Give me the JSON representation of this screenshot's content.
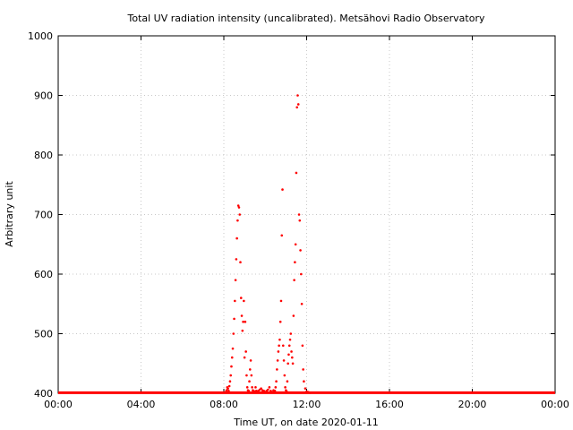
{
  "chart_data": {
    "type": "scatter",
    "title": "Total UV radiation intensity (uncalibrated). Metsähovi Radio Observatory",
    "xlabel": "Time UT, on date 2020-01-11",
    "ylabel": "Arbitrary unit",
    "xlim": [
      "00:00",
      "24:00"
    ],
    "ylim": [
      400,
      1000
    ],
    "x_ticks": [
      "00:00",
      "04:00",
      "08:00",
      "12:00",
      "16:00",
      "20:00",
      "00:00"
    ],
    "x_tick_hours": [
      0,
      4,
      8,
      12,
      16,
      20,
      24
    ],
    "y_ticks": [
      400,
      500,
      600,
      700,
      800,
      900,
      1000
    ],
    "grid": true,
    "marker_color": "#ff0000",
    "baseline": {
      "y": 401,
      "from": "00:00",
      "to": "24:00"
    },
    "series": [
      {
        "x": [
          "08:05",
          "08:08",
          "08:10",
          "08:12",
          "08:14",
          "08:16",
          "08:18",
          "08:20",
          "08:22",
          "08:24",
          "08:26",
          "08:28",
          "08:30",
          "08:32",
          "08:34",
          "08:36",
          "08:38",
          "08:40",
          "08:42",
          "08:44",
          "08:46",
          "08:48",
          "08:50",
          "08:52",
          "08:54",
          "08:56",
          "08:58",
          "09:00",
          "09:02",
          "09:04",
          "09:06",
          "09:08",
          "09:10",
          "09:12",
          "09:14",
          "09:16",
          "09:18",
          "09:20",
          "09:22",
          "09:24",
          "09:26",
          "09:28",
          "09:30",
          "09:32",
          "09:34",
          "09:36",
          "09:38",
          "09:40",
          "09:44",
          "09:48",
          "09:52",
          "09:56",
          "10:00",
          "10:04",
          "10:08",
          "10:12",
          "10:16",
          "10:20",
          "10:24",
          "10:28",
          "10:30",
          "10:32",
          "10:34",
          "10:36",
          "10:38",
          "10:40",
          "10:42",
          "10:44",
          "10:46",
          "10:48",
          "10:50",
          "10:52",
          "10:54",
          "10:56",
          "10:58",
          "11:00",
          "11:02",
          "11:04",
          "11:06",
          "11:08",
          "11:10",
          "11:12",
          "11:14",
          "11:16",
          "11:18",
          "11:20",
          "11:22",
          "11:24",
          "11:26",
          "11:28",
          "11:30",
          "11:32",
          "11:34",
          "11:36",
          "11:38",
          "11:40",
          "11:42",
          "11:44",
          "11:46",
          "11:48",
          "11:50",
          "11:52",
          "11:56",
          "12:00",
          "12:05",
          "12:10"
        ],
        "y": [
          402,
          405,
          410,
          408,
          404,
          412,
          420,
          430,
          445,
          460,
          475,
          500,
          525,
          555,
          590,
          625,
          660,
          690,
          715,
          712,
          700,
          620,
          560,
          530,
          505,
          520,
          555,
          460,
          520,
          470,
          430,
          410,
          405,
          404,
          420,
          440,
          455,
          430,
          410,
          405,
          404,
          402,
          403,
          410,
          404,
          402,
          403,
          404,
          406,
          408,
          405,
          404,
          402,
          404,
          406,
          410,
          404,
          402,
          405,
          404,
          410,
          420,
          440,
          455,
          470,
          480,
          490,
          520,
          555,
          665,
          742,
          480,
          455,
          430,
          410,
          405,
          403,
          420,
          450,
          465,
          480,
          490,
          500,
          470,
          460,
          450,
          530,
          590,
          620,
          650,
          770,
          880,
          900,
          885,
          700,
          690,
          640,
          600,
          550,
          480,
          440,
          420,
          408,
          403,
          402,
          401
        ]
      }
    ]
  }
}
